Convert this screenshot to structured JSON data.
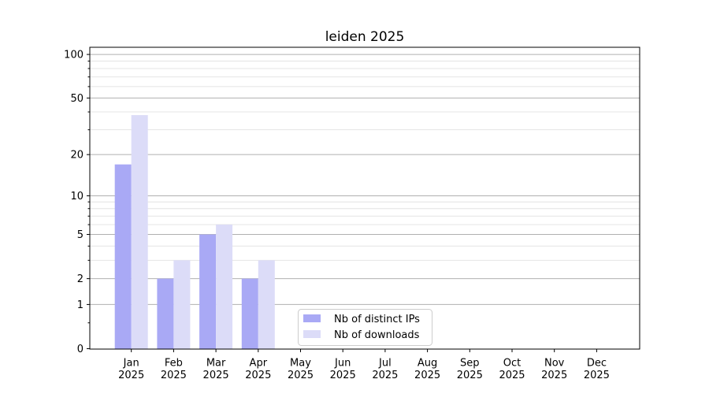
{
  "chart_data": {
    "type": "bar",
    "title": "leiden 2025",
    "x_categories": [
      "Jan",
      "Feb",
      "Mar",
      "Apr",
      "May",
      "Jun",
      "Jul",
      "Aug",
      "Sep",
      "Oct",
      "Nov",
      "Dec"
    ],
    "x_sub_label": "2025",
    "series": [
      {
        "name": "Nb of distinct IPs",
        "color": "#a9a9f5",
        "values": [
          17,
          2,
          5,
          2,
          0,
          0,
          0,
          0,
          0,
          0,
          0,
          0
        ]
      },
      {
        "name": "Nb of downloads",
        "color": "#dcdcf8",
        "values": [
          38,
          3,
          6,
          3,
          0,
          0,
          0,
          0,
          0,
          0,
          0,
          0
        ]
      }
    ],
    "y_scale": "log10(1+v)",
    "y_major_ticks": [
      0,
      1,
      2,
      5,
      10,
      20,
      50,
      100
    ],
    "y_minor_ticks": [
      0.5,
      3,
      4,
      6,
      7,
      8,
      9,
      30,
      40,
      60,
      70,
      80,
      90
    ],
    "ylim": [
      0,
      112
    ],
    "grid": {
      "major_color": "#b0b0b0",
      "minor_color": "#e4e4e4",
      "horizontal": true
    },
    "axis_color": "#000000",
    "legend": {
      "position": "bottom-left-of-center"
    }
  }
}
